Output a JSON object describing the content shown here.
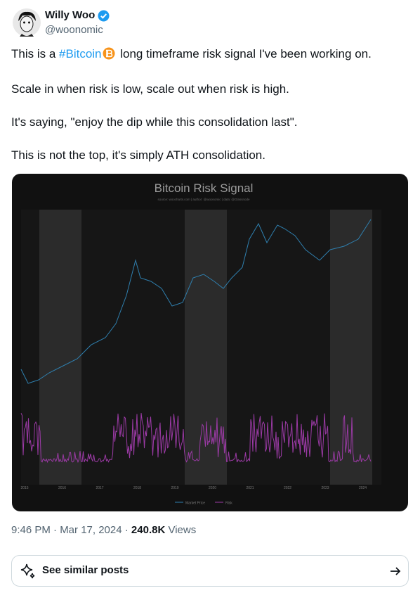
{
  "author": {
    "name": "Willy Woo",
    "handle": "@woonomic"
  },
  "post": {
    "paragraphs": [
      [
        "This is a ",
        "#Bitcoin",
        " long timeframe risk signal I've been working on."
      ],
      [
        "Scale in when risk is low, scale out when risk is high."
      ],
      [
        "It's saying, \"enjoy the dip while this consolidation last\"."
      ],
      [
        "This is not the top, it's simply ATH consolidation."
      ]
    ]
  },
  "image": {
    "title": "Bitcoin Risk Signal",
    "source": "source: woocharts.com | author: @woonomic | data: @Glassnode",
    "years": [
      "2015",
      "2016",
      "2017",
      "2018",
      "2019",
      "2020",
      "2021",
      "2022",
      "2023",
      "2024"
    ],
    "legend": [
      "Market Price",
      "Risk"
    ]
  },
  "meta": {
    "time": "9:46 PM · Mar 17, 2024 · ",
    "views": "240.8K",
    "views_label": " Views"
  },
  "button": {
    "label": "See similar posts"
  }
}
